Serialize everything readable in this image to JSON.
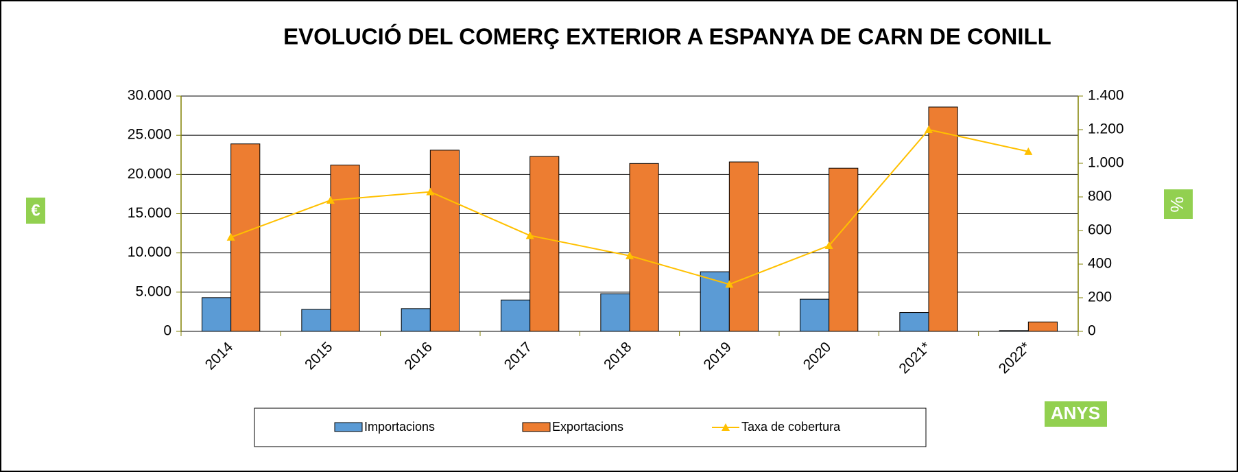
{
  "chart_data": {
    "type": "bar",
    "title": "EVOLUCIÓ DEL COMERÇ EXTERIOR A ESPANYA DE CARN DE CONILL",
    "y_label": "€",
    "y2_label": "%",
    "x_label": "ANYS",
    "categories": [
      "2014",
      "2015",
      "2016",
      "2017",
      "2018",
      "2019",
      "2020",
      "2021*",
      "2022*"
    ],
    "series": [
      {
        "name": "Importacions",
        "type": "bar",
        "color": "#5b9bd5",
        "values": [
          4300,
          2800,
          2900,
          4000,
          4800,
          7600,
          4100,
          2400,
          100
        ]
      },
      {
        "name": "Exportacions",
        "type": "bar",
        "color": "#ed7d31",
        "values": [
          23900,
          21200,
          23100,
          22300,
          21400,
          21600,
          20800,
          28600,
          1200
        ]
      },
      {
        "name": "Taxa de cobertura",
        "type": "line",
        "axis": "y2",
        "color": "#ffc000",
        "values": [
          560,
          780,
          830,
          570,
          450,
          280,
          510,
          1200,
          1070
        ]
      }
    ],
    "ylim": [
      0,
      30000
    ],
    "yticks": [
      0,
      {
        "value": 5000,
        "label": "5.000"
      },
      {
        "value": 10000,
        "label": "10.000"
      },
      {
        "value": 15000,
        "label": "15.000"
      },
      {
        "value": 20000,
        "label": "20.000"
      },
      {
        "value": 25000,
        "label": "25.000"
      },
      {
        "value": 30000,
        "label": "30.000"
      }
    ],
    "y2lim": [
      0,
      1400
    ],
    "y2ticks": [
      0,
      200,
      400,
      600,
      800,
      {
        "value": 1000,
        "label": "1.000"
      },
      {
        "value": 1200,
        "label": "1.200"
      },
      {
        "value": 1400,
        "label": "1.400"
      }
    ],
    "grid": true,
    "legend": "bottom"
  }
}
